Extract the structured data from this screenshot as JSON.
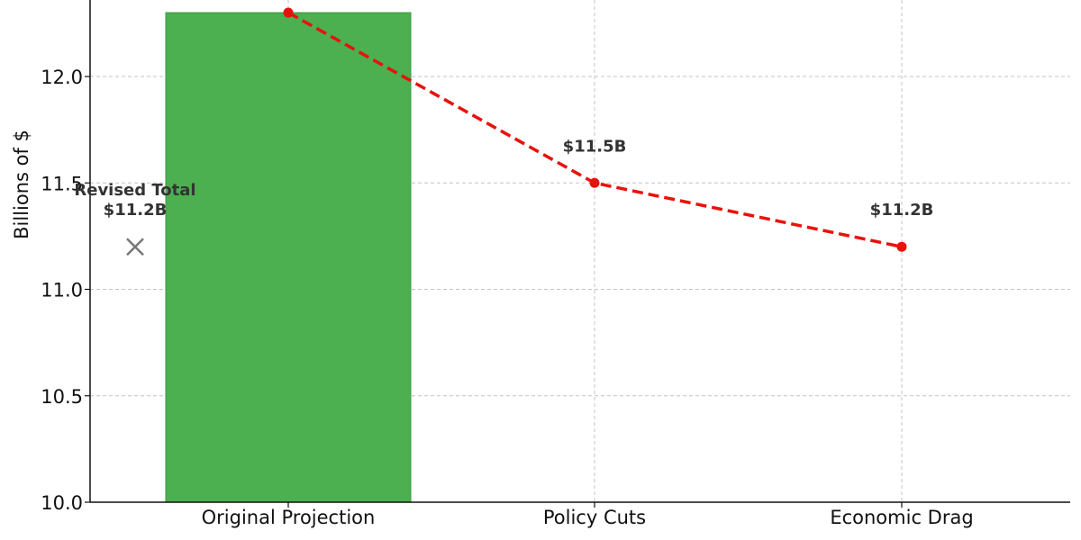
{
  "chart_data": {
    "type": "bar",
    "title": "",
    "xlabel": "",
    "ylabel": "Billions of $",
    "ylim": [
      10.0,
      12.3
    ],
    "yticks": [
      10.0,
      10.5,
      11.0,
      11.5,
      12.0
    ],
    "ytick_labels": [
      "10.0",
      "10.5",
      "11.0",
      "11.5",
      "12.0"
    ],
    "categories": [
      "Original Projection",
      "Policy Cuts",
      "Economic Drag"
    ],
    "grid": true,
    "bar_series": {
      "values": [
        12.3,
        null,
        null
      ],
      "color": "#4caf50"
    },
    "line_series": {
      "values": [
        12.3,
        11.5,
        11.2
      ],
      "color": "#e8120c",
      "style": "dashed",
      "marker": "circle"
    },
    "data_labels": [
      {
        "category": "Policy Cuts",
        "value": 11.5,
        "text": "$11.5B"
      },
      {
        "category": "Economic Drag",
        "value": 11.2,
        "text": "$11.2B"
      }
    ],
    "annotation": {
      "marker": "x",
      "value": 11.2,
      "line1": "Revised Total",
      "line2": "$11.2B",
      "color": "#777777"
    }
  }
}
